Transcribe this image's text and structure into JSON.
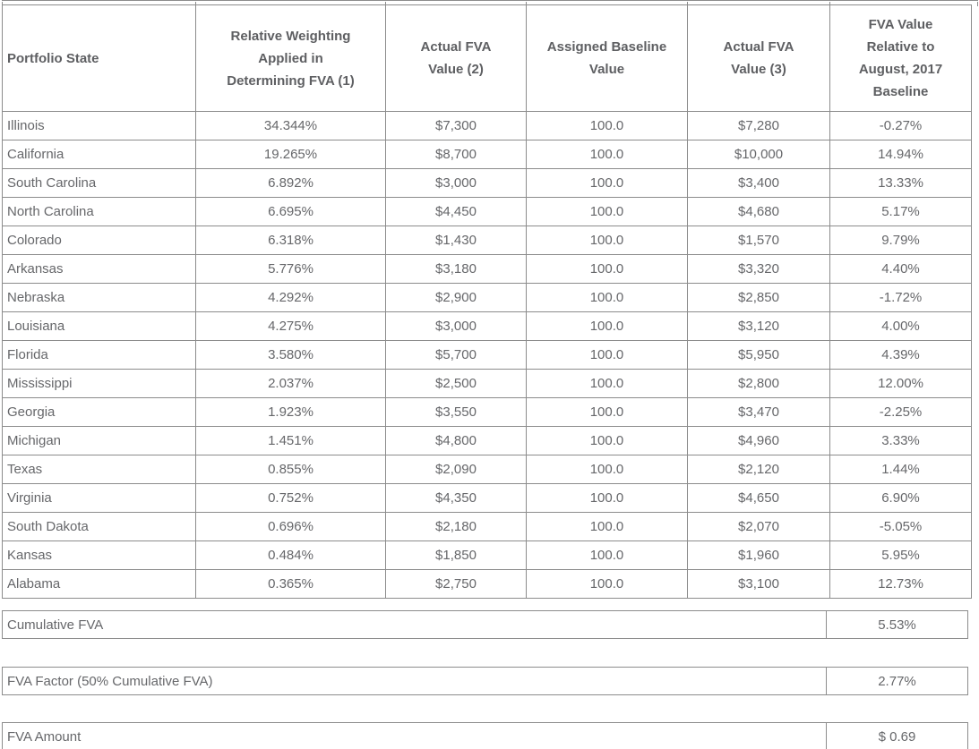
{
  "colors": {
    "text": "#66676a",
    "header_text": "#5e5f62",
    "border": "#8c8c8c",
    "background": "#ffffff"
  },
  "table": {
    "columns": [
      {
        "label": "Portfolio State"
      },
      {
        "label": "Relative Weighting\nApplied in\nDetermining FVA (1)"
      },
      {
        "label": "Actual FVA\nValue (2)"
      },
      {
        "label": "Assigned  Baseline\nValue"
      },
      {
        "label": "Actual FVA\nValue (3)"
      },
      {
        "label": "FVA Value\nRelative to\nAugust, 2017\nBaseline"
      }
    ],
    "rows": [
      {
        "state": "Illinois",
        "weighting": "34.344%",
        "fva_value_2": "$7,300",
        "baseline": "100.0",
        "fva_value_3": "$7,280",
        "relative_to_baseline": "-0.27%"
      },
      {
        "state": "California",
        "weighting": "19.265%",
        "fva_value_2": "$8,700",
        "baseline": "100.0",
        "fva_value_3": "$10,000",
        "relative_to_baseline": "14.94%"
      },
      {
        "state": "South Carolina",
        "weighting": "6.892%",
        "fva_value_2": "$3,000",
        "baseline": "100.0",
        "fva_value_3": "$3,400",
        "relative_to_baseline": "13.33%"
      },
      {
        "state": "North Carolina",
        "weighting": "6.695%",
        "fva_value_2": "$4,450",
        "baseline": "100.0",
        "fva_value_3": "$4,680",
        "relative_to_baseline": "5.17%"
      },
      {
        "state": "Colorado",
        "weighting": "6.318%",
        "fva_value_2": "$1,430",
        "baseline": "100.0",
        "fva_value_3": "$1,570",
        "relative_to_baseline": "9.79%"
      },
      {
        "state": "Arkansas",
        "weighting": "5.776%",
        "fva_value_2": "$3,180",
        "baseline": "100.0",
        "fva_value_3": "$3,320",
        "relative_to_baseline": "4.40%"
      },
      {
        "state": "Nebraska",
        "weighting": "4.292%",
        "fva_value_2": "$2,900",
        "baseline": "100.0",
        "fva_value_3": "$2,850",
        "relative_to_baseline": "-1.72%"
      },
      {
        "state": "Louisiana",
        "weighting": "4.275%",
        "fva_value_2": "$3,000",
        "baseline": "100.0",
        "fva_value_3": "$3,120",
        "relative_to_baseline": "4.00%"
      },
      {
        "state": "Florida",
        "weighting": "3.580%",
        "fva_value_2": "$5,700",
        "baseline": "100.0",
        "fva_value_3": "$5,950",
        "relative_to_baseline": "4.39%"
      },
      {
        "state": "Mississippi",
        "weighting": "2.037%",
        "fva_value_2": "$2,500",
        "baseline": "100.0",
        "fva_value_3": "$2,800",
        "relative_to_baseline": "12.00%"
      },
      {
        "state": "Georgia",
        "weighting": "1.923%",
        "fva_value_2": "$3,550",
        "baseline": "100.0",
        "fva_value_3": "$3,470",
        "relative_to_baseline": "-2.25%"
      },
      {
        "state": "Michigan",
        "weighting": "1.451%",
        "fva_value_2": "$4,800",
        "baseline": "100.0",
        "fva_value_3": "$4,960",
        "relative_to_baseline": "3.33%"
      },
      {
        "state": "Texas",
        "weighting": "0.855%",
        "fva_value_2": "$2,090",
        "baseline": "100.0",
        "fva_value_3": "$2,120",
        "relative_to_baseline": "1.44%"
      },
      {
        "state": "Virginia",
        "weighting": "0.752%",
        "fva_value_2": "$4,350",
        "baseline": "100.0",
        "fva_value_3": "$4,650",
        "relative_to_baseline": "6.90%"
      },
      {
        "state": "South Dakota",
        "weighting": "0.696%",
        "fva_value_2": "$2,180",
        "baseline": "100.0",
        "fva_value_3": "$2,070",
        "relative_to_baseline": "-5.05%"
      },
      {
        "state": "Kansas",
        "weighting": "0.484%",
        "fva_value_2": "$1,850",
        "baseline": "100.0",
        "fva_value_3": "$1,960",
        "relative_to_baseline": "5.95%"
      },
      {
        "state": "Alabama",
        "weighting": "0.365%",
        "fva_value_2": "$2,750",
        "baseline": "100.0",
        "fva_value_3": "$3,100",
        "relative_to_baseline": "12.73%"
      }
    ]
  },
  "summary": {
    "cumulative_fva": {
      "label": "Cumulative FVA",
      "value": "5.53%"
    },
    "fva_factor": {
      "label": "FVA Factor (50% Cumulative FVA)",
      "value": "2.77%"
    },
    "fva_amount": {
      "label": "FVA Amount",
      "value": "$ 0.69"
    }
  }
}
